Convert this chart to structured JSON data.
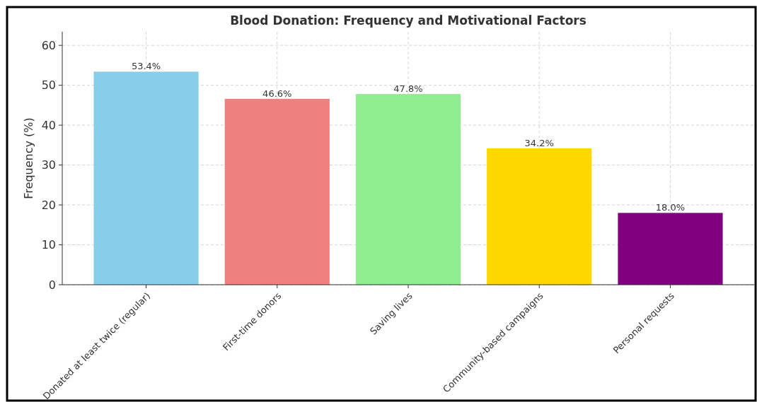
{
  "chart_data": {
    "type": "bar",
    "title": "Blood Donation: Frequency and Motivational Factors",
    "ylabel": "Frequency (%)",
    "categories": [
      "Donated at least twice (regular)",
      "First-time donors",
      "Saving lives",
      "Community-based campaigns",
      "Personal requests"
    ],
    "values": [
      53.4,
      46.6,
      47.8,
      34.2,
      18.0
    ],
    "colors": [
      "#87ceeb",
      "#f08080",
      "#90ee90",
      "#ffd700",
      "#800080"
    ],
    "value_labels": [
      "53.4%",
      "46.6%",
      "47.8%",
      "34.2%",
      "18.0%"
    ],
    "ylim": [
      0,
      63.4
    ],
    "yticks": [
      0,
      10,
      20,
      30,
      40,
      50,
      60
    ],
    "grid": true
  }
}
